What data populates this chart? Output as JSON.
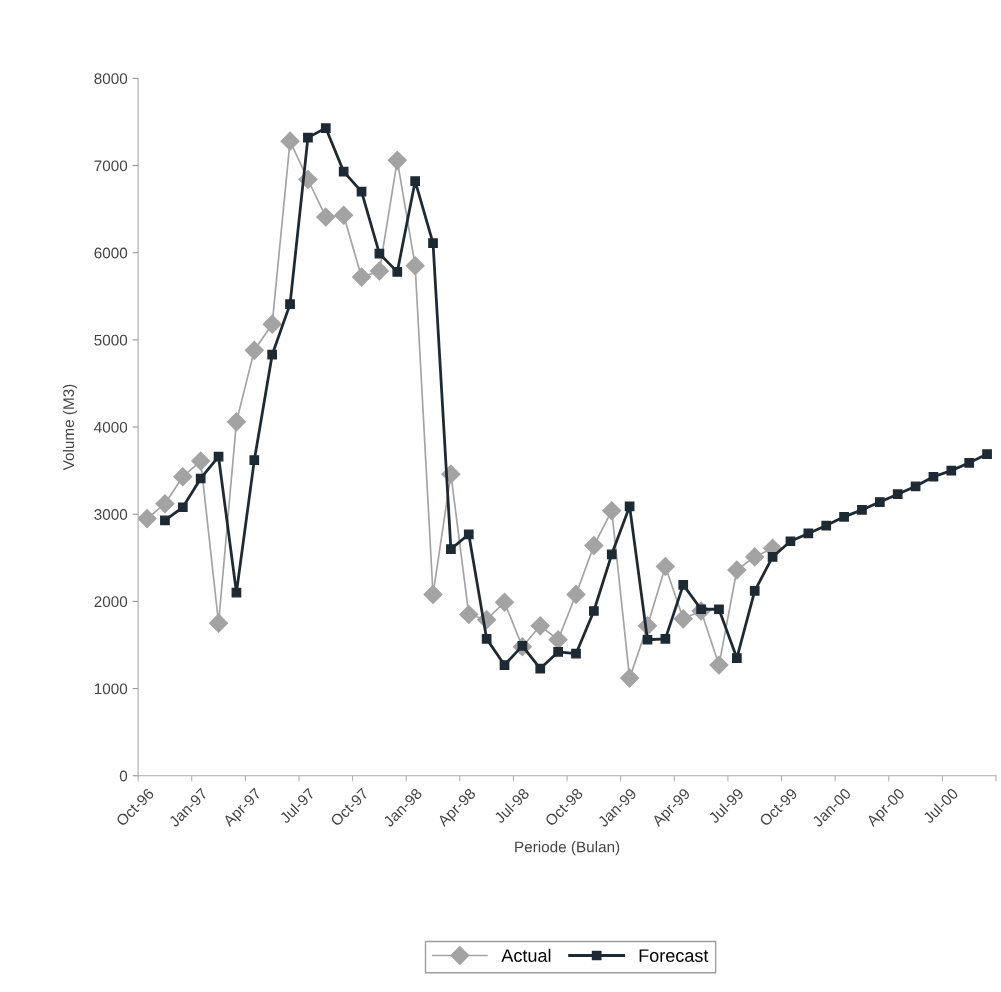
{
  "chart_data": {
    "type": "line",
    "xlabel": "Periode (Bulan)",
    "ylabel": "Volume (M3)",
    "categories": [
      "Oct-96",
      null,
      null,
      "Jan-97",
      null,
      null,
      "Apr-97",
      null,
      null,
      "Jul-97",
      null,
      null,
      "Oct-97",
      null,
      null,
      "Jan-98",
      null,
      null,
      "Apr-98",
      null,
      null,
      "Jul-98",
      null,
      null,
      "Oct-98",
      null,
      null,
      "Jan-99",
      null,
      null,
      "Apr-99",
      null,
      null,
      "Jul-99",
      null,
      null,
      "Oct-99",
      null,
      null,
      "Jan-00",
      null,
      null,
      "Apr-00",
      null,
      null,
      "Jul-00",
      null,
      null
    ],
    "series": [
      {
        "name": "Actual",
        "color": "#a3a3a3",
        "marker": "diamond",
        "values": [
          2950,
          3120,
          3430,
          3610,
          1750,
          4060,
          4880,
          5180,
          7280,
          6840,
          6410,
          6430,
          5720,
          5790,
          7060,
          5850,
          2080,
          3460,
          1850,
          1790,
          1990,
          1480,
          1720,
          1560,
          2080,
          2640,
          3040,
          1120,
          1720,
          2400,
          1800,
          1890,
          1270,
          2360,
          2510,
          2610,
          null,
          null,
          null,
          null,
          null,
          null,
          null,
          null,
          null,
          null,
          null,
          null
        ]
      },
      {
        "name": "Forecast",
        "color": "#1e2a33",
        "marker": "square",
        "values": [
          null,
          2930,
          3080,
          3410,
          3660,
          2100,
          3620,
          4830,
          5410,
          7320,
          7430,
          6930,
          6700,
          5990,
          5780,
          6820,
          6110,
          2600,
          2770,
          1570,
          1270,
          1490,
          1230,
          1420,
          1400,
          1890,
          2540,
          3090,
          1560,
          1570,
          2190,
          1910,
          1910,
          1350,
          2120,
          2510,
          2690,
          2780,
          2870,
          2970,
          3050,
          3140,
          3230,
          3320,
          3430,
          3500,
          3590,
          3690
        ]
      }
    ],
    "ylim": [
      0,
      8000
    ],
    "yticks": [
      0,
      1000,
      2000,
      3000,
      4000,
      5000,
      6000,
      7000,
      8000
    ],
    "grid": false,
    "legend": "bottom"
  }
}
